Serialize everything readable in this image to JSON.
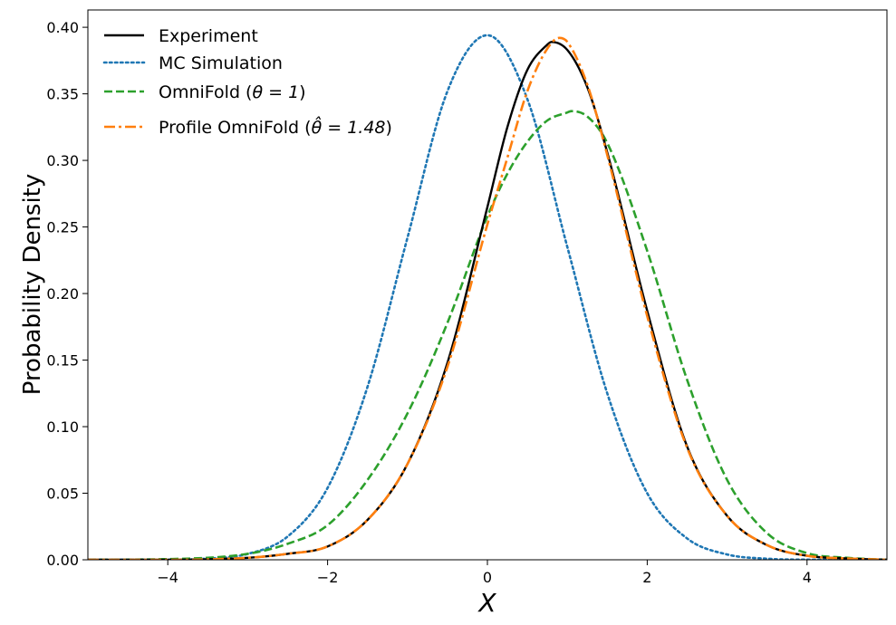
{
  "chart_data": {
    "type": "line",
    "xlabel": "X",
    "ylabel": "Probability Density",
    "xlim": [
      -5,
      5
    ],
    "ylim": [
      0,
      0.413
    ],
    "x_ticks": [
      -4,
      -2,
      0,
      2,
      4
    ],
    "x_tick_labels": [
      "−4",
      "−2",
      "0",
      "2",
      "4"
    ],
    "y_ticks": [
      0.0,
      0.05,
      0.1,
      0.15,
      0.2,
      0.25,
      0.3,
      0.35,
      0.4
    ],
    "y_tick_labels": [
      "0.00",
      "0.05",
      "0.10",
      "0.15",
      "0.20",
      "0.25",
      "0.30",
      "0.35",
      "0.40"
    ],
    "legend_position": "top-left",
    "series": [
      {
        "name": "Experiment",
        "label": "Experiment",
        "color": "#000000",
        "style": "solid",
        "x": [
          -5,
          -4,
          -3,
          -2.5,
          -2,
          -1.5,
          -1,
          -0.5,
          0,
          0.25,
          0.5,
          0.75,
          0.8,
          1,
          1.25,
          1.5,
          2,
          2.5,
          3,
          3.5,
          4,
          4.5,
          5
        ],
        "y": [
          0.0,
          0.0,
          0.0015,
          0.0045,
          0.01,
          0.03,
          0.072,
          0.148,
          0.265,
          0.325,
          0.368,
          0.387,
          0.389,
          0.383,
          0.355,
          0.306,
          0.187,
          0.085,
          0.033,
          0.011,
          0.003,
          0.001,
          0.0
        ]
      },
      {
        "name": "MC Simulation",
        "label": "MC Simulation",
        "color": "#1f77b4",
        "style": "dotted",
        "x": [
          -5,
          -4,
          -3.5,
          -3,
          -2.5,
          -2,
          -1.5,
          -1,
          -0.5,
          0,
          0.5,
          1,
          1.5,
          2,
          2.5,
          3,
          3.5,
          4,
          5
        ],
        "y": [
          0.0,
          0.0001,
          0.0009,
          0.0044,
          0.0175,
          0.054,
          0.13,
          0.242,
          0.352,
          0.394,
          0.346,
          0.235,
          0.125,
          0.05,
          0.016,
          0.004,
          0.0008,
          0.0001,
          0.0
        ]
      },
      {
        "name": "OmniFold",
        "label_prefix": "OmniFold (",
        "label_math": "θ = 1",
        "label_suffix": ")",
        "color": "#2ca02c",
        "style": "dashed",
        "x": [
          -5,
          -4,
          -3,
          -2.5,
          -2,
          -1.5,
          -1,
          -0.5,
          0,
          0.25,
          0.5,
          0.75,
          1,
          1.05,
          1.25,
          1.5,
          2,
          2.5,
          3,
          3.5,
          4,
          4.5,
          5
        ],
        "y": [
          0.0,
          0.0005,
          0.0045,
          0.012,
          0.026,
          0.06,
          0.11,
          0.178,
          0.258,
          0.29,
          0.314,
          0.33,
          0.336,
          0.337,
          0.333,
          0.313,
          0.232,
          0.135,
          0.06,
          0.02,
          0.005,
          0.0015,
          0.0
        ]
      },
      {
        "name": "Profile OmniFold",
        "label_prefix": "Profile OmniFold (",
        "label_math": "θ̂ = 1.48",
        "label_suffix": ")",
        "color": "#ff7f0e",
        "style": "dashdot",
        "x": [
          -5,
          -4,
          -3,
          -2.5,
          -2,
          -1.5,
          -1,
          -0.5,
          0,
          0.25,
          0.5,
          0.75,
          0.9,
          1,
          1.25,
          1.5,
          2,
          2.5,
          3,
          3.5,
          4,
          4.5,
          5
        ],
        "y": [
          0.0,
          0.0,
          0.0015,
          0.0045,
          0.01,
          0.03,
          0.072,
          0.145,
          0.252,
          0.302,
          0.352,
          0.384,
          0.392,
          0.389,
          0.357,
          0.304,
          0.183,
          0.084,
          0.033,
          0.011,
          0.003,
          0.001,
          0.0
        ]
      }
    ]
  }
}
